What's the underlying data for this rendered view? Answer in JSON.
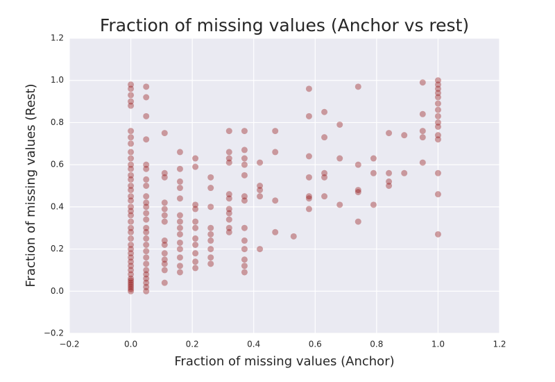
{
  "chart_data": {
    "type": "scatter",
    "title": "Fraction of missing values (Anchor vs rest)",
    "x_label": "Fraction of missing values (Anchor)",
    "y_label": "Fraction of missing values (Rest)",
    "color": "#8b0000",
    "grid": true,
    "xlim": [
      -0.2,
      1.2
    ],
    "ylim": [
      -0.2,
      1.2
    ],
    "xticks": [
      {
        "value": -0.2,
        "label": "−0.2"
      },
      {
        "value": 0,
        "label": "0.0"
      },
      0.2,
      0.4,
      0.6,
      0.8,
      {
        "value": 1,
        "label": "1.0"
      },
      1.2
    ],
    "yticks": [
      {
        "value": -0.2,
        "label": "−0.2"
      },
      {
        "value": 0,
        "label": "0.0"
      },
      0.2,
      0.4,
      0.6,
      0.8,
      {
        "value": 1,
        "label": "1.0"
      },
      1.2
    ],
    "x": [
      0,
      0,
      0,
      0,
      0,
      0,
      0,
      0,
      0,
      0,
      0,
      0,
      0,
      0,
      0,
      0,
      0,
      0,
      0,
      0,
      0,
      0,
      0,
      0,
      0,
      0,
      0,
      0,
      0,
      0,
      0,
      0,
      0,
      0,
      0,
      0,
      0,
      0,
      0,
      0,
      0.05,
      0.05,
      0.05,
      0.05,
      0.05,
      0.05,
      0.05,
      0.05,
      0.05,
      0.05,
      0.05,
      0.05,
      0.05,
      0.05,
      0.05,
      0.05,
      0.05,
      0.05,
      0.05,
      0.05,
      0.05,
      0.05,
      0.05,
      0.05,
      0.05,
      0.05,
      0.11,
      0.11,
      0.11,
      0.11,
      0.11,
      0.11,
      0.11,
      0.11,
      0.11,
      0.11,
      0.11,
      0.11,
      0.11,
      0.11,
      0.16,
      0.16,
      0.16,
      0.16,
      0.16,
      0.16,
      0.16,
      0.16,
      0.16,
      0.16,
      0.16,
      0.16,
      0.16,
      0.16,
      0.21,
      0.21,
      0.21,
      0.21,
      0.21,
      0.21,
      0.21,
      0.21,
      0.21,
      0.21,
      0.21,
      0.26,
      0.26,
      0.26,
      0.26,
      0.26,
      0.26,
      0.26,
      0.26,
      0.26,
      0.32,
      0.32,
      0.32,
      0.32,
      0.32,
      0.32,
      0.32,
      0.32,
      0.32,
      0.32,
      0.32,
      0.37,
      0.37,
      0.37,
      0.37,
      0.37,
      0.37,
      0.37,
      0.37,
      0.37,
      0.37,
      0.37,
      0.37,
      0.37,
      0.42,
      0.42,
      0.42,
      0.42,
      0.42,
      0.47,
      0.47,
      0.47,
      0.47,
      0.53,
      0.58,
      0.58,
      0.58,
      0.58,
      0.58,
      0.58,
      0.58,
      0.63,
      0.63,
      0.63,
      0.63,
      0.63,
      0.68,
      0.68,
      0.68,
      0.74,
      0.74,
      0.74,
      0.74,
      0.74,
      0.79,
      0.79,
      0.79,
      0.84,
      0.84,
      0.84,
      0.84,
      0.89,
      0.89,
      0.95,
      0.95,
      0.95,
      0.95,
      0.95,
      1,
      1,
      1,
      1,
      1,
      1,
      1,
      1,
      1,
      1,
      1,
      1,
      1,
      1,
      1
    ],
    "values": [
      0,
      0.01,
      0.02,
      0.03,
      0.04,
      0.05,
      0.06,
      0.08,
      0.1,
      0.12,
      0.14,
      0.16,
      0.18,
      0.2,
      0.22,
      0.25,
      0.28,
      0.3,
      0.33,
      0.36,
      0.38,
      0.4,
      0.43,
      0.45,
      0.48,
      0.5,
      0.53,
      0.55,
      0.58,
      0.6,
      0.63,
      0.66,
      0.7,
      0.73,
      0.76,
      0.88,
      0.9,
      0.93,
      0.96,
      0.98,
      0,
      0.02,
      0.04,
      0.06,
      0.08,
      0.1,
      0.13,
      0.16,
      0.19,
      0.22,
      0.25,
      0.28,
      0.3,
      0.34,
      0.37,
      0.4,
      0.42,
      0.45,
      0.5,
      0.53,
      0.58,
      0.6,
      0.72,
      0.83,
      0.92,
      0.97,
      0.04,
      0.1,
      0.13,
      0.15,
      0.18,
      0.22,
      0.24,
      0.33,
      0.36,
      0.39,
      0.42,
      0.54,
      0.56,
      0.75,
      0.09,
      0.12,
      0.16,
      0.2,
      0.23,
      0.27,
      0.3,
      0.33,
      0.36,
      0.44,
      0.49,
      0.52,
      0.58,
      0.66,
      0.11,
      0.14,
      0.18,
      0.22,
      0.25,
      0.3,
      0.33,
      0.39,
      0.41,
      0.59,
      0.63,
      0.13,
      0.16,
      0.2,
      0.24,
      0.27,
      0.3,
      0.4,
      0.49,
      0.54,
      0.28,
      0.3,
      0.34,
      0.37,
      0.39,
      0.44,
      0.46,
      0.61,
      0.63,
      0.66,
      0.76,
      0.09,
      0.12,
      0.15,
      0.2,
      0.24,
      0.3,
      0.43,
      0.45,
      0.55,
      0.6,
      0.63,
      0.67,
      0.76,
      0.2,
      0.45,
      0.48,
      0.5,
      0.61,
      0.28,
      0.43,
      0.66,
      0.76,
      0.26,
      0.39,
      0.44,
      0.45,
      0.54,
      0.64,
      0.83,
      0.96,
      0.45,
      0.54,
      0.56,
      0.73,
      0.85,
      0.41,
      0.63,
      0.79,
      0.33,
      0.47,
      0.48,
      0.6,
      0.97,
      0.41,
      0.56,
      0.63,
      0.5,
      0.52,
      0.56,
      0.75,
      0.56,
      0.74,
      0.61,
      0.73,
      0.76,
      0.84,
      0.99,
      0.27,
      0.46,
      0.56,
      0.72,
      0.74,
      0.78,
      0.8,
      0.83,
      0.86,
      0.89,
      0.92,
      0.94,
      0.96,
      0.98,
      1
    ]
  }
}
